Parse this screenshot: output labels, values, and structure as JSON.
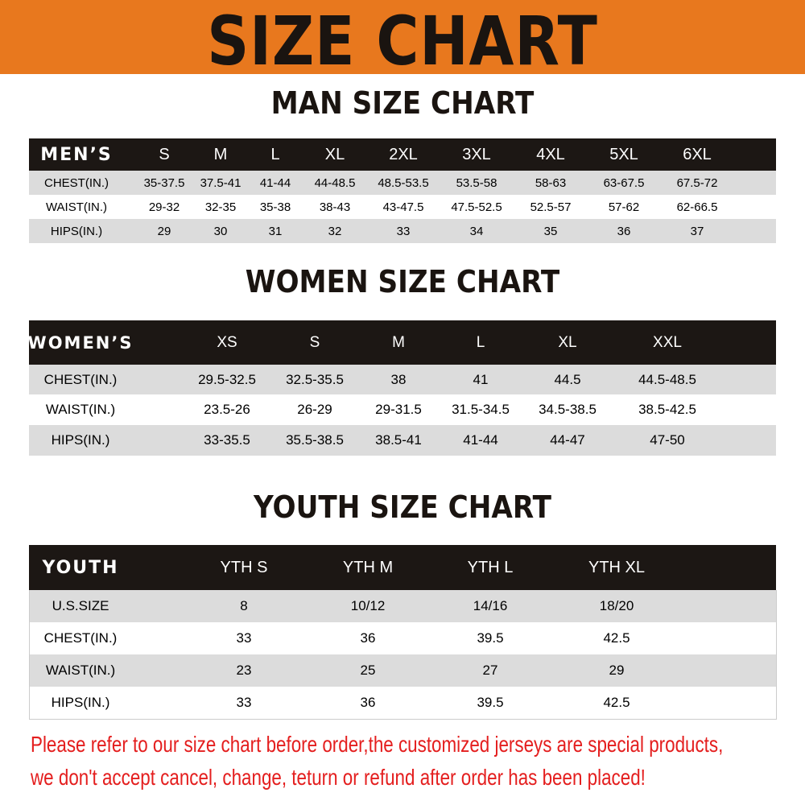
{
  "banner": {
    "title": "SIZE CHART",
    "color": "#E8781E"
  },
  "men": {
    "title": "MAN SIZE CHART",
    "header": "MEN’S",
    "sizes": [
      "S",
      "M",
      "L",
      "XL",
      "2XL",
      "3XL",
      "4XL",
      "5XL",
      "6XL"
    ],
    "rows": [
      {
        "label": "CHEST(IN.)",
        "values": [
          "35-37.5",
          "37.5-41",
          "41-44",
          "44-48.5",
          "48.5-53.5",
          "53.5-58",
          "58-63",
          "63-67.5",
          "67.5-72"
        ]
      },
      {
        "label": "WAIST(IN.)",
        "values": [
          "29-32",
          "32-35",
          "35-38",
          "38-43",
          "43-47.5",
          "47.5-52.5",
          "52.5-57",
          "57-62",
          "62-66.5"
        ]
      },
      {
        "label": "HIPS(IN.)",
        "values": [
          "29",
          "30",
          "31",
          "32",
          "33",
          "34",
          "35",
          "36",
          "37"
        ]
      }
    ]
  },
  "women": {
    "title": "WOMEN SIZE CHART",
    "header": "WOMEN’S",
    "sizes": [
      "XS",
      "S",
      "M",
      "L",
      "XL",
      "XXL"
    ],
    "rows": [
      {
        "label": "CHEST(IN.)",
        "values": [
          "29.5-32.5",
          "32.5-35.5",
          "38",
          "41",
          "44.5",
          "44.5-48.5"
        ]
      },
      {
        "label": "WAIST(IN.)",
        "values": [
          "23.5-26",
          "26-29",
          "29-31.5",
          "31.5-34.5",
          "34.5-38.5",
          "38.5-42.5"
        ]
      },
      {
        "label": "HIPS(IN.)",
        "values": [
          "33-35.5",
          "35.5-38.5",
          "38.5-41",
          "41-44",
          "44-47",
          "47-50"
        ]
      }
    ]
  },
  "youth": {
    "title": "YOUTH SIZE CHART",
    "header": "YOUTH",
    "sizes": [
      "YTH S",
      "YTH M",
      "YTH L",
      "YTH XL"
    ],
    "rows": [
      {
        "label": "U.S.SIZE",
        "values": [
          "8",
          "10/12",
          "14/16",
          "18/20"
        ]
      },
      {
        "label": "CHEST(IN.)",
        "values": [
          "33",
          "36",
          "39.5",
          "42.5"
        ]
      },
      {
        "label": "WAIST(IN.)",
        "values": [
          "23",
          "25",
          "27",
          "29"
        ]
      },
      {
        "label": "HIPS(IN.)",
        "values": [
          "33",
          "36",
          "39.5",
          "42.5"
        ]
      }
    ]
  },
  "notice": {
    "line1": "Please refer to our size chart before order,the customized jerseys are special products,",
    "line2": "we don't accept cancel, change, teturn or refund after order has been placed!",
    "color": "#e41e1e"
  }
}
